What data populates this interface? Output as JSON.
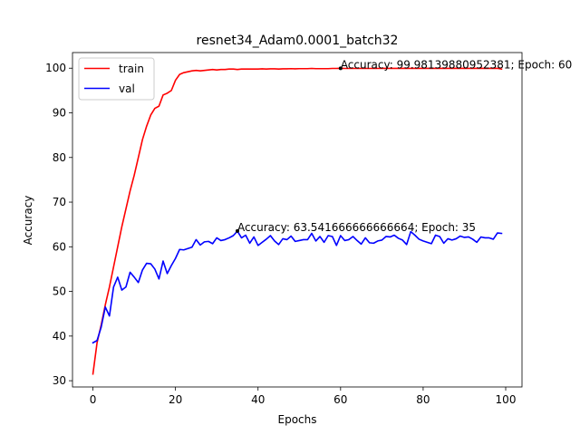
{
  "chart_data": {
    "type": "line",
    "title": "resnet34_Adam0.0001_batch32",
    "xlabel": "Epochs",
    "ylabel": "Accuracy",
    "xlim": [
      -4.95,
      103.95
    ],
    "ylim": [
      28.6,
      103.5
    ],
    "xticks": [
      0,
      20,
      40,
      60,
      80,
      100
    ],
    "yticks": [
      30,
      40,
      50,
      60,
      70,
      80,
      90,
      100
    ],
    "xtick_labels": [
      "0",
      "20",
      "40",
      "60",
      "80",
      "100"
    ],
    "ytick_labels": [
      "30",
      "40",
      "50",
      "60",
      "70",
      "80",
      "90",
      "100"
    ],
    "grid": false,
    "legend_position": "upper-left",
    "series": [
      {
        "name": "train",
        "color": "#ff0000",
        "x": [
          0,
          1,
          2,
          3,
          4,
          5,
          6,
          7,
          8,
          9,
          10,
          11,
          12,
          13,
          14,
          15,
          16,
          17,
          18,
          19,
          20,
          21,
          22,
          23,
          24,
          25,
          26,
          27,
          28,
          29,
          30,
          31,
          32,
          33,
          34,
          35,
          36,
          37,
          38,
          39,
          40,
          41,
          42,
          43,
          44,
          45,
          46,
          47,
          48,
          49,
          50,
          51,
          52,
          53,
          54,
          55,
          56,
          57,
          58,
          59,
          60,
          61,
          62,
          63,
          64,
          65,
          66,
          67,
          68,
          69,
          70,
          71,
          72,
          73,
          74,
          75,
          76,
          77,
          78,
          79,
          80,
          81,
          82,
          83,
          84,
          85,
          86,
          87,
          88,
          89,
          90,
          91,
          92,
          93,
          94,
          95,
          96,
          97,
          98,
          99
        ],
        "values": [
          31.5,
          38.5,
          42.5,
          47.0,
          51.0,
          55.5,
          60.0,
          64.5,
          68.5,
          72.5,
          76.0,
          80.0,
          84.0,
          87.0,
          89.5,
          91.0,
          91.5,
          94.0,
          94.4,
          95.0,
          97.3,
          98.6,
          99.0,
          99.2,
          99.4,
          99.5,
          99.4,
          99.5,
          99.6,
          99.7,
          99.6,
          99.7,
          99.7,
          99.8,
          99.8,
          99.7,
          99.8,
          99.8,
          99.8,
          99.8,
          99.8,
          99.85,
          99.8,
          99.85,
          99.85,
          99.8,
          99.85,
          99.85,
          99.9,
          99.85,
          99.9,
          99.9,
          99.9,
          99.95,
          99.9,
          99.9,
          99.9,
          99.9,
          99.95,
          99.95,
          99.98,
          99.95,
          99.95,
          99.95,
          99.95,
          99.95,
          99.95,
          99.95,
          99.95,
          99.95,
          99.96,
          99.96,
          99.96,
          99.96,
          99.96,
          99.96,
          99.96,
          99.96,
          99.96,
          99.96,
          99.97,
          99.97,
          99.97,
          99.97,
          99.97,
          99.97,
          99.97,
          99.97,
          99.97,
          99.97,
          99.97,
          99.97,
          99.97,
          99.97,
          99.97,
          99.97,
          99.97,
          99.97,
          99.97,
          99.8
        ]
      },
      {
        "name": "val",
        "color": "#0000ff",
        "x": [
          0,
          1,
          2,
          3,
          4,
          5,
          6,
          7,
          8,
          9,
          10,
          11,
          12,
          13,
          14,
          15,
          16,
          17,
          18,
          19,
          20,
          21,
          22,
          23,
          24,
          25,
          26,
          27,
          28,
          29,
          30,
          31,
          32,
          33,
          34,
          35,
          36,
          37,
          38,
          39,
          40,
          41,
          42,
          43,
          44,
          45,
          46,
          47,
          48,
          49,
          50,
          51,
          52,
          53,
          54,
          55,
          56,
          57,
          58,
          59,
          60,
          61,
          62,
          63,
          64,
          65,
          66,
          67,
          68,
          69,
          70,
          71,
          72,
          73,
          74,
          75,
          76,
          77,
          78,
          79,
          80,
          81,
          82,
          83,
          84,
          85,
          86,
          87,
          88,
          89,
          90,
          91,
          92,
          93,
          94,
          95,
          96,
          97,
          98,
          99
        ],
        "values": [
          38.5,
          39.0,
          42.0,
          46.5,
          44.5,
          51.0,
          53.2,
          50.3,
          51.0,
          54.3,
          53.2,
          52.0,
          54.8,
          56.3,
          56.2,
          55.0,
          52.8,
          56.8,
          54.0,
          55.8,
          57.4,
          59.4,
          59.3,
          59.6,
          59.9,
          61.6,
          60.4,
          61.1,
          61.2,
          60.7,
          62.0,
          61.4,
          61.6,
          62.0,
          62.5,
          63.5,
          62.0,
          62.6,
          60.8,
          62.2,
          60.3,
          61.0,
          61.7,
          62.5,
          61.3,
          60.5,
          61.8,
          61.6,
          62.4,
          61.2,
          61.4,
          61.6,
          61.6,
          63.0,
          61.3,
          62.3,
          61.0,
          62.5,
          62.3,
          60.3,
          62.5,
          61.4,
          61.6,
          62.3,
          61.4,
          60.6,
          62.0,
          60.9,
          60.8,
          61.3,
          61.5,
          62.3,
          62.2,
          62.6,
          61.9,
          61.5,
          60.5,
          63.4,
          62.6,
          61.7,
          61.3,
          61.0,
          60.7,
          62.6,
          62.3,
          60.8,
          61.8,
          61.5,
          61.8,
          62.4,
          62.1,
          62.2,
          61.7,
          61.0,
          62.2,
          62.0,
          62.0,
          61.7,
          63.1,
          63.0
        ]
      }
    ],
    "annotations": [
      {
        "text": "Accuracy: 99.98139880952381; Epoch: 60",
        "x": 60,
        "y": 99.98139880952381,
        "color": "#ff0000"
      },
      {
        "text": "Accuracy: 63.541666666666664; Epoch: 35",
        "x": 35,
        "y": 63.541666666666664,
        "color": "#0000ff"
      }
    ]
  }
}
